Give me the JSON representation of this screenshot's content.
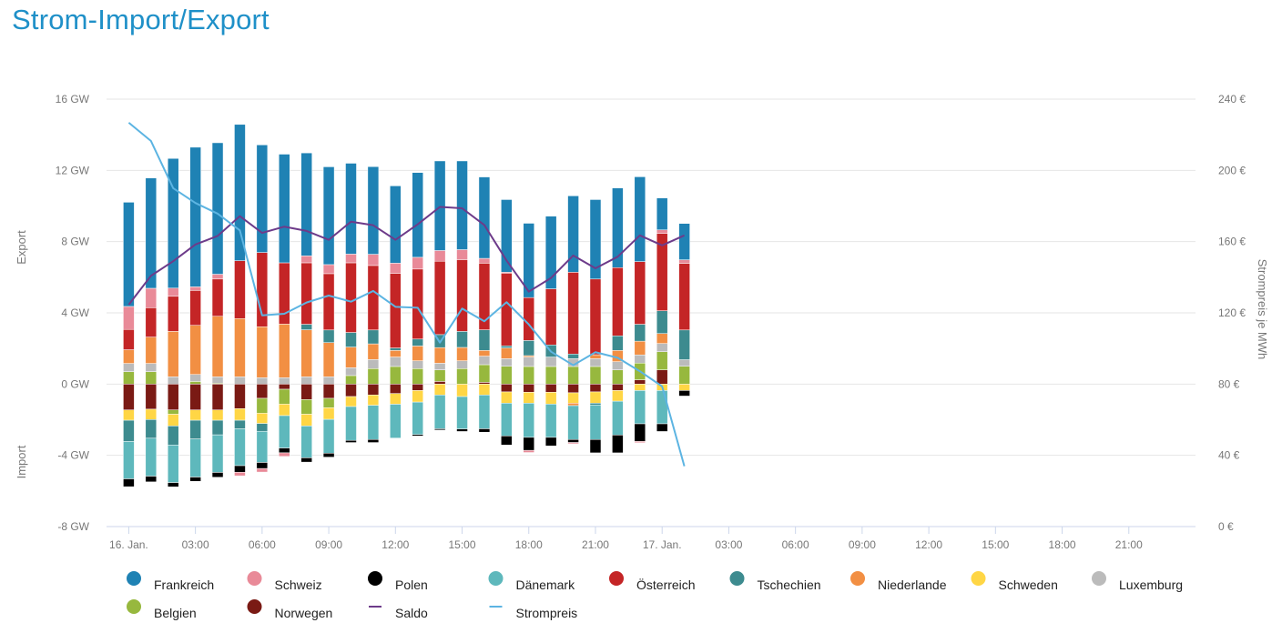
{
  "title": "Strom-Import/Export",
  "chart_data": {
    "type": "bar",
    "stacked": true,
    "title": "Strom-Import/Export",
    "x_hours": [
      0,
      1,
      2,
      3,
      4,
      5,
      6,
      7,
      8,
      9,
      10,
      11,
      12,
      13,
      14,
      15,
      16,
      17,
      18,
      19,
      20,
      21,
      22,
      23,
      24,
      25
    ],
    "x_range_hours": [
      -1,
      48
    ],
    "x_ticks": [
      {
        "hour": 0,
        "label": "16. Jan."
      },
      {
        "hour": 3,
        "label": "03:00"
      },
      {
        "hour": 6,
        "label": "06:00"
      },
      {
        "hour": 9,
        "label": "09:00"
      },
      {
        "hour": 12,
        "label": "12:00"
      },
      {
        "hour": 15,
        "label": "15:00"
      },
      {
        "hour": 18,
        "label": "18:00"
      },
      {
        "hour": 21,
        "label": "21:00"
      },
      {
        "hour": 24,
        "label": "17. Jan."
      },
      {
        "hour": 27,
        "label": "03:00"
      },
      {
        "hour": 30,
        "label": "06:00"
      },
      {
        "hour": 33,
        "label": "09:00"
      },
      {
        "hour": 36,
        "label": "12:00"
      },
      {
        "hour": 39,
        "label": "15:00"
      },
      {
        "hour": 42,
        "label": "18:00"
      },
      {
        "hour": 45,
        "label": "21:00"
      }
    ],
    "y_left": {
      "label_top": "Export",
      "label_bottom": "Import",
      "unit": "GW",
      "ylim": [
        -8,
        16
      ],
      "ticks": [
        {
          "v": 16,
          "label": "16 GW"
        },
        {
          "v": 12,
          "label": "12 GW"
        },
        {
          "v": 8,
          "label": "8 GW"
        },
        {
          "v": 4,
          "label": "4 GW"
        },
        {
          "v": 0,
          "label": "0 GW"
        },
        {
          "v": -4,
          "label": "-4 GW"
        },
        {
          "v": -8,
          "label": "-8 GW"
        }
      ]
    },
    "y_right": {
      "label": "Strompreis je MWh",
      "unit": "€",
      "ylim": [
        0,
        240
      ],
      "ticks": [
        {
          "v": 240,
          "label": "240 €"
        },
        {
          "v": 200,
          "label": "200 €"
        },
        {
          "v": 160,
          "label": "160 €"
        },
        {
          "v": 120,
          "label": "120 €"
        },
        {
          "v": 80,
          "label": "80 €"
        },
        {
          "v": 40,
          "label": "40 €"
        },
        {
          "v": 0,
          "label": "0 €"
        }
      ]
    },
    "grid": true,
    "legend_position": "bottom",
    "series": [
      {
        "name": "Frankreich",
        "color": "#1f82b4",
        "values": [
          5.85,
          6.19,
          7.28,
          7.84,
          7.38,
          7.65,
          6.04,
          6.1,
          5.78,
          5.49,
          5.1,
          4.92,
          4.34,
          4.76,
          5.03,
          4.98,
          4.57,
          4.08,
          4.17,
          4.08,
          4.29,
          4.46,
          4.47,
          4.76,
          1.79,
          2.04
        ]
      },
      {
        "name": "Schweiz",
        "color": "#e98a98",
        "values": [
          1.29,
          1.09,
          0.46,
          0.2,
          0.27,
          -0.2,
          -0.2,
          -0.2,
          0.39,
          0.51,
          0.49,
          0.63,
          0.58,
          0.66,
          0.6,
          0.56,
          0.27,
          0.05,
          -0.12,
          0,
          -0.07,
          0,
          0,
          -0.07,
          0.2,
          0.2
        ]
      },
      {
        "name": "Polen",
        "color": "#000000",
        "values": [
          -0.44,
          -0.32,
          -0.24,
          -0.24,
          -0.27,
          -0.37,
          -0.34,
          -0.27,
          -0.24,
          -0.22,
          -0.12,
          -0.17,
          0,
          -0.08,
          -0.07,
          -0.14,
          -0.19,
          -0.51,
          -0.73,
          -0.48,
          -0.17,
          -0.75,
          -1.0,
          -0.99,
          -0.43,
          -0.31
        ]
      },
      {
        "name": "Dänemark",
        "color": "#5eb8bc",
        "values": [
          -2.1,
          -2.13,
          -2.11,
          -2.14,
          -2.11,
          -2.07,
          -1.75,
          -1.82,
          -1.79,
          -1.9,
          -1.9,
          -1.92,
          -1.9,
          -1.82,
          -1.9,
          -1.82,
          -1.9,
          -1.84,
          -1.92,
          -1.87,
          -1.9,
          -1.94,
          -1.9,
          -1.87,
          -1.87,
          0
        ]
      },
      {
        "name": "Österreich",
        "color": "#c42526",
        "values": [
          1.14,
          1.65,
          1.97,
          1.96,
          2.09,
          3.25,
          4.17,
          3.44,
          3.45,
          3.16,
          3.91,
          3.62,
          4.18,
          3.93,
          4.12,
          4.03,
          3.74,
          4.08,
          2.41,
          3.15,
          4.59,
          4.25,
          3.83,
          3.52,
          4.34,
          3.74
        ]
      },
      {
        "name": "Tschechien",
        "color": "#3d8b8f",
        "values": [
          -1.19,
          -1.05,
          -1.07,
          -1.05,
          -0.82,
          -0.48,
          -0.44,
          0,
          0.31,
          0.71,
          0.82,
          0.78,
          0.14,
          0.39,
          0.73,
          0.9,
          1.16,
          0.12,
          0.85,
          0.68,
          0.26,
          -0.1,
          0.82,
          0.95,
          1.28,
          1.67
        ]
      },
      {
        "name": "Niederlande",
        "color": "#f28f43",
        "values": [
          0.77,
          1.48,
          2.55,
          2.76,
          3.4,
          3.27,
          2.86,
          3.01,
          2.64,
          1.92,
          1.16,
          0.88,
          0.37,
          0.83,
          0.88,
          0.75,
          0.32,
          0.6,
          0.08,
          0,
          -0.14,
          0.22,
          0.63,
          0.77,
          0.56,
          0
        ]
      },
      {
        "name": "Schweden",
        "color": "#ffd645",
        "values": [
          -0.58,
          -0.58,
          -0.66,
          -0.58,
          -0.58,
          -0.65,
          -0.58,
          -0.65,
          -0.66,
          -0.65,
          -0.56,
          -0.58,
          -0.6,
          -0.65,
          -0.61,
          -0.7,
          -0.61,
          -0.63,
          -0.61,
          -0.66,
          -0.58,
          -0.63,
          -0.6,
          -0.36,
          -0.36,
          -0.36
        ]
      },
      {
        "name": "Luxemburg",
        "color": "#bbbbbb",
        "values": [
          0.46,
          0.46,
          0.41,
          0.39,
          0.36,
          0.41,
          0.36,
          0.36,
          0.41,
          0.41,
          0.44,
          0.51,
          0.53,
          0.44,
          0.37,
          0.44,
          0.48,
          0.43,
          0.53,
          0.53,
          0.44,
          0.44,
          0.46,
          0.46,
          0.46,
          0.37
        ]
      },
      {
        "name": "Belgien",
        "color": "#97b83e",
        "values": [
          0.7,
          0.7,
          -0.24,
          0.15,
          0.05,
          0,
          -0.83,
          -0.83,
          -0.82,
          -0.53,
          0.48,
          0.87,
          0.99,
          0.87,
          0.65,
          0.87,
          0.99,
          1.0,
          0.99,
          0.99,
          0.99,
          0.99,
          0.8,
          0.94,
          1.02,
          1.0
        ]
      },
      {
        "name": "Norwegen",
        "color": "#7a1a14",
        "values": [
          -1.45,
          -1.41,
          -1.45,
          -1.45,
          -1.45,
          -1.38,
          -0.8,
          -0.29,
          -0.87,
          -0.8,
          -0.7,
          -0.61,
          -0.53,
          -0.36,
          0.15,
          0,
          0.1,
          -0.44,
          -0.46,
          -0.46,
          -0.49,
          -0.44,
          -0.36,
          0.24,
          0.8,
          0
        ]
      }
    ],
    "stack_order_positive": [
      "Norwegen",
      "Belgien",
      "Luxemburg",
      "Niederlande",
      "Tschechien",
      "Österreich",
      "Schweiz",
      "Frankreich"
    ],
    "stack_order_negative": [
      "Norwegen",
      "Belgien",
      "Schweden",
      "Niederlande",
      "Tschechien",
      "Dänemark",
      "Polen",
      "Schweiz"
    ],
    "lines": [
      {
        "name": "Saldo",
        "color": "#6d3b8a",
        "axis": "left",
        "values": [
          4.46,
          6.08,
          6.9,
          7.84,
          8.32,
          9.43,
          8.49,
          8.84,
          8.6,
          8.1,
          9.12,
          8.92,
          8.1,
          8.97,
          9.95,
          9.87,
          8.93,
          6.94,
          5.19,
          5.96,
          7.22,
          6.5,
          7.15,
          8.35,
          7.79,
          8.35
        ]
      },
      {
        "name": "Strompreis",
        "color": "#5cb4e2",
        "axis": "right",
        "values": [
          226.8,
          216.5,
          190,
          181.7,
          175.7,
          166.3,
          118.6,
          119.5,
          125.8,
          129.7,
          126.3,
          132.3,
          123.4,
          122.9,
          103.3,
          122.4,
          115.3,
          126,
          113.5,
          98.2,
          90.6,
          97.9,
          94.8,
          87.2,
          78.7,
          33.9
        ]
      }
    ],
    "legend": [
      "Frankreich",
      "Schweiz",
      "Polen",
      "Dänemark",
      "Österreich",
      "Tschechien",
      "Niederlande",
      "Schweden",
      "Luxemburg",
      "Belgien",
      "Norwegen",
      "Saldo",
      "Strompreis"
    ]
  }
}
